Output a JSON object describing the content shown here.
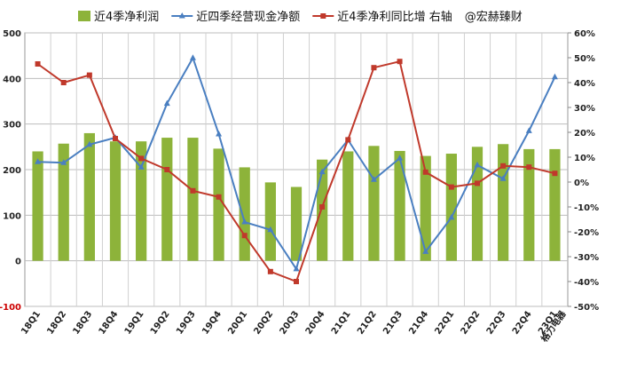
{
  "chart_data": {
    "type": "bar+line",
    "title": "",
    "categories": [
      "18Q1",
      "18Q2",
      "18Q3",
      "18Q4",
      "19Q1",
      "19Q2",
      "19Q3",
      "19Q4",
      "20Q1",
      "20Q2",
      "20Q3",
      "20Q4",
      "21Q1",
      "21Q2",
      "21Q3",
      "21Q4",
      "22Q1",
      "22Q2",
      "22Q3",
      "22Q4",
      "23Q1"
    ],
    "series": [
      {
        "name": "近4季净利润",
        "type": "bar",
        "axis": "left",
        "color": "#8db33a",
        "values": [
          240,
          257,
          280,
          262,
          262,
          270,
          270,
          246,
          205,
          172,
          162,
          222,
          240,
          252,
          241,
          230,
          235,
          250,
          256,
          245,
          245
        ]
      },
      {
        "name": "近四季经营现金净额",
        "type": "line",
        "axis": "left",
        "color": "#4a7fc1",
        "marker": "triangle",
        "values": [
          217,
          215,
          255,
          270,
          205,
          345,
          445,
          278,
          85,
          68,
          -18,
          195,
          265,
          178,
          225,
          20,
          95,
          210,
          180,
          285,
          403
        ]
      },
      {
        "name": "近4季净利同比增 右轴",
        "type": "line",
        "axis": "right",
        "color": "#c0392b",
        "marker": "square",
        "values": [
          47.5,
          40,
          43,
          17.5,
          9.5,
          5,
          -3.5,
          -6,
          -21.5,
          -36,
          -40,
          -10,
          17,
          46,
          48.5,
          4,
          -2,
          -0.5,
          6.5,
          6,
          3.5
        ]
      }
    ],
    "yaxis_left": {
      "min": -100,
      "max": 500,
      "ticks": [
        -100,
        0,
        100,
        200,
        300,
        400,
        500
      ],
      "negative_tick_color": "#cc0000"
    },
    "yaxis_right": {
      "min": -50,
      "max": 60,
      "ticks": [
        "60%",
        "50%",
        "40%",
        "30%",
        "20%",
        "10%",
        "0%",
        "-10%",
        "-20%",
        "-30%",
        "-40%",
        "-50%"
      ]
    },
    "grid": true,
    "legend_position": "top",
    "watermark": "@宏赫臻财",
    "footnote": "格力电器"
  }
}
